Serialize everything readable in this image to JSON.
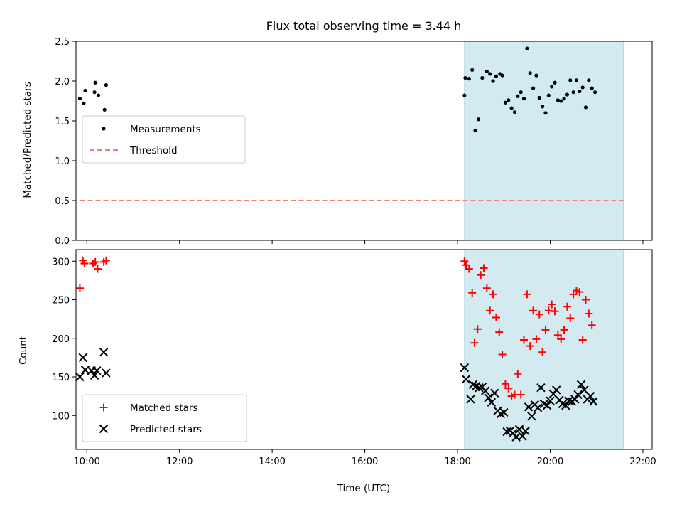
{
  "chart_data": [
    {
      "type": "scatter",
      "title": "Flux total observing time = 3.44 h",
      "xlabel": "",
      "ylabel": "Matched/Predicted stars",
      "xlim": [
        "09:46",
        "22:12"
      ],
      "ylim": [
        0,
        2.5
      ],
      "yticks": [
        "0.0",
        "0.5",
        "1.0",
        "1.5",
        "2.0",
        "2.5"
      ],
      "xticks": [
        "10:00",
        "12:00",
        "14:00",
        "16:00",
        "18:00",
        "20:00",
        "22:00"
      ],
      "shaded_span": [
        "18:09",
        "21:35"
      ],
      "shaded_color": "#d4eaf1",
      "legend_position": "center-left",
      "series": [
        {
          "name": "Measurements",
          "kind": "scatter",
          "marker": "dot",
          "color": "#000000",
          "points": [
            [
              "09:51",
              1.78
            ],
            [
              "09:56",
              1.72
            ],
            [
              "09:58",
              1.88
            ],
            [
              "10:10",
              1.86
            ],
            [
              "10:11",
              1.98
            ],
            [
              "10:15",
              1.82
            ],
            [
              "10:23",
              1.64
            ],
            [
              "10:25",
              1.95
            ],
            [
              "18:09",
              1.82
            ],
            [
              "18:10",
              2.04
            ],
            [
              "18:15",
              2.03
            ],
            [
              "18:19",
              2.14
            ],
            [
              "18:23",
              1.38
            ],
            [
              "18:27",
              1.52
            ],
            [
              "18:32",
              2.04
            ],
            [
              "18:38",
              2.12
            ],
            [
              "18:42",
              2.09
            ],
            [
              "18:46",
              2.0
            ],
            [
              "18:50",
              2.06
            ],
            [
              "18:55",
              2.09
            ],
            [
              "18:58",
              2.07
            ],
            [
              "19:02",
              1.73
            ],
            [
              "19:06",
              1.76
            ],
            [
              "19:10",
              1.66
            ],
            [
              "19:14",
              1.61
            ],
            [
              "19:18",
              1.81
            ],
            [
              "19:22",
              1.86
            ],
            [
              "19:26",
              1.78
            ],
            [
              "19:30",
              2.41
            ],
            [
              "19:34",
              2.1
            ],
            [
              "19:38",
              1.91
            ],
            [
              "19:42",
              2.07
            ],
            [
              "19:46",
              1.79
            ],
            [
              "19:50",
              1.68
            ],
            [
              "19:54",
              1.6
            ],
            [
              "19:58",
              1.82
            ],
            [
              "20:02",
              1.93
            ],
            [
              "20:06",
              1.98
            ],
            [
              "20:10",
              1.76
            ],
            [
              "20:14",
              1.75
            ],
            [
              "20:18",
              1.78
            ],
            [
              "20:22",
              1.83
            ],
            [
              "20:26",
              2.01
            ],
            [
              "20:30",
              1.86
            ],
            [
              "20:34",
              2.01
            ],
            [
              "20:38",
              1.87
            ],
            [
              "20:42",
              1.92
            ],
            [
              "20:46",
              1.67
            ],
            [
              "20:50",
              2.01
            ],
            [
              "20:54",
              1.91
            ],
            [
              "20:58",
              1.86
            ]
          ]
        },
        {
          "name": "Threshold",
          "kind": "dashed-line",
          "color": "#f08080",
          "points": [
            [
              "09:51",
              0.5
            ],
            [
              "21:35",
              0.5
            ]
          ]
        }
      ]
    },
    {
      "type": "scatter",
      "title": "",
      "xlabel": "Time (UTC)",
      "ylabel": "Count",
      "xlim": [
        "09:46",
        "22:12"
      ],
      "ylim": [
        56,
        315
      ],
      "yticks": [
        "100",
        "150",
        "200",
        "250",
        "300"
      ],
      "xticks": [
        "10:00",
        "12:00",
        "14:00",
        "16:00",
        "18:00",
        "20:00",
        "22:00"
      ],
      "shaded_span": [
        "18:09",
        "21:35"
      ],
      "shaded_color": "#d4eaf1",
      "legend_position": "lower-left",
      "series": [
        {
          "name": "Matched stars",
          "kind": "scatter",
          "marker": "plus",
          "color": "#ff0000",
          "points": [
            [
              "09:51",
              265
            ],
            [
              "09:55",
              301
            ],
            [
              "09:57",
              297
            ],
            [
              "10:08",
              297
            ],
            [
              "10:11",
              299
            ],
            [
              "10:14",
              290
            ],
            [
              "10:22",
              299
            ],
            [
              "10:25",
              301
            ],
            [
              "18:09",
              300
            ],
            [
              "18:11",
              295
            ],
            [
              "18:15",
              290
            ],
            [
              "18:19",
              259
            ],
            [
              "18:22",
              194
            ],
            [
              "18:26",
              212
            ],
            [
              "18:30",
              282
            ],
            [
              "18:34",
              291
            ],
            [
              "18:38",
              265
            ],
            [
              "18:42",
              236
            ],
            [
              "18:46",
              257
            ],
            [
              "18:50",
              227
            ],
            [
              "18:54",
              208
            ],
            [
              "18:58",
              179
            ],
            [
              "19:02",
              141
            ],
            [
              "19:06",
              135
            ],
            [
              "19:10",
              125
            ],
            [
              "19:14",
              127
            ],
            [
              "19:18",
              154
            ],
            [
              "19:22",
              127
            ],
            [
              "19:26",
              198
            ],
            [
              "19:30",
              257
            ],
            [
              "19:34",
              190
            ],
            [
              "19:38",
              236
            ],
            [
              "19:42",
              199
            ],
            [
              "19:46",
              231
            ],
            [
              "19:50",
              182
            ],
            [
              "19:54",
              211
            ],
            [
              "19:58",
              236
            ],
            [
              "20:02",
              244
            ],
            [
              "20:06",
              235
            ],
            [
              "20:10",
              204
            ],
            [
              "20:14",
              199
            ],
            [
              "20:18",
              211
            ],
            [
              "20:22",
              241
            ],
            [
              "20:26",
              226
            ],
            [
              "20:30",
              257
            ],
            [
              "20:34",
              262
            ],
            [
              "20:38",
              260
            ],
            [
              "20:42",
              198
            ],
            [
              "20:46",
              250
            ],
            [
              "20:50",
              232
            ],
            [
              "20:54",
              217
            ]
          ]
        },
        {
          "name": "Predicted stars",
          "kind": "scatter",
          "marker": "x",
          "color": "#000000",
          "points": [
            [
              "09:51",
              150
            ],
            [
              "09:55",
              175
            ],
            [
              "09:58",
              159
            ],
            [
              "10:06",
              158
            ],
            [
              "10:10",
              152
            ],
            [
              "10:13",
              158
            ],
            [
              "10:22",
              182
            ],
            [
              "10:25",
              155
            ],
            [
              "18:09",
              162
            ],
            [
              "18:11",
              147
            ],
            [
              "18:17",
              121
            ],
            [
              "18:20",
              140
            ],
            [
              "18:24",
              138
            ],
            [
              "18:28",
              136
            ],
            [
              "18:32",
              137
            ],
            [
              "18:36",
              132
            ],
            [
              "18:40",
              123
            ],
            [
              "18:44",
              117
            ],
            [
              "18:48",
              129
            ],
            [
              "18:52",
              106
            ],
            [
              "18:56",
              102
            ],
            [
              "19:00",
              104
            ],
            [
              "19:04",
              79
            ],
            [
              "19:08",
              80
            ],
            [
              "19:12",
              77
            ],
            [
              "19:16",
              72
            ],
            [
              "19:20",
              82
            ],
            [
              "19:24",
              73
            ],
            [
              "19:28",
              80
            ],
            [
              "19:32",
              111
            ],
            [
              "19:36",
              99
            ],
            [
              "19:40",
              114
            ],
            [
              "19:44",
              110
            ],
            [
              "19:48",
              136
            ],
            [
              "19:52",
              115
            ],
            [
              "19:56",
              113
            ],
            [
              "20:00",
              119
            ],
            [
              "20:04",
              128
            ],
            [
              "20:08",
              133
            ],
            [
              "20:12",
              120
            ],
            [
              "20:16",
              115
            ],
            [
              "20:20",
              113
            ],
            [
              "20:24",
              119
            ],
            [
              "20:28",
              118
            ],
            [
              "20:32",
              121
            ],
            [
              "20:36",
              127
            ],
            [
              "20:40",
              140
            ],
            [
              "20:44",
              133
            ],
            [
              "20:48",
              121
            ],
            [
              "20:52",
              125
            ],
            [
              "20:56",
              118
            ]
          ]
        }
      ]
    }
  ]
}
